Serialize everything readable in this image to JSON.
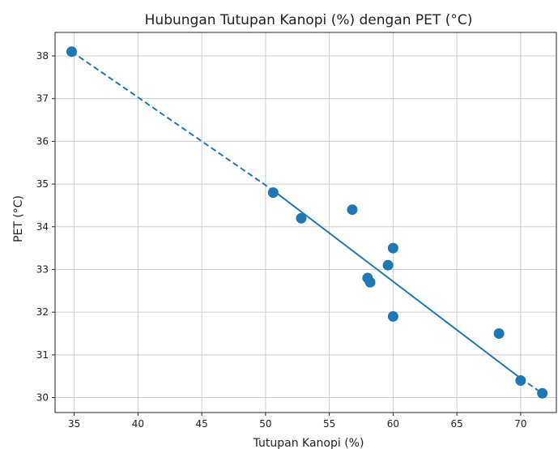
{
  "chart_data": {
    "type": "scatter",
    "title": "Hubungan Tutupan Kanopi (%) dengan PET (°C)",
    "xlabel": "Tutupan Kanopi (%)",
    "ylabel": "PET (°C)",
    "xlim": [
      33.5,
      72.8
    ],
    "ylim": [
      29.65,
      38.55
    ],
    "xticks": [
      35,
      40,
      45,
      50,
      55,
      60,
      65,
      70
    ],
    "yticks": [
      30,
      31,
      32,
      33,
      34,
      35,
      36,
      37,
      38
    ],
    "grid": true,
    "points": [
      {
        "x": 34.8,
        "y": 38.1
      },
      {
        "x": 50.6,
        "y": 34.8
      },
      {
        "x": 52.8,
        "y": 34.2
      },
      {
        "x": 56.8,
        "y": 34.4
      },
      {
        "x": 58.0,
        "y": 32.8
      },
      {
        "x": 58.2,
        "y": 32.7
      },
      {
        "x": 59.6,
        "y": 33.1
      },
      {
        "x": 60.0,
        "y": 33.5
      },
      {
        "x": 60.0,
        "y": 31.9
      },
      {
        "x": 68.3,
        "y": 31.5
      },
      {
        "x": 70.0,
        "y": 30.4
      },
      {
        "x": 71.7,
        "y": 30.1
      }
    ],
    "fit_solid": [
      [
        50.6,
        34.85
      ],
      [
        70.0,
        30.45
      ]
    ],
    "fit_dashed": [
      [
        [
          34.8,
          38.1
        ],
        [
          50.6,
          34.85
        ]
      ],
      [
        [
          70.0,
          30.45
        ],
        [
          71.7,
          30.1
        ]
      ]
    ],
    "colors": {
      "point": "#1f77b4",
      "line": "#1f77b4",
      "grid": "#cccccc",
      "axis": "#222222"
    }
  }
}
